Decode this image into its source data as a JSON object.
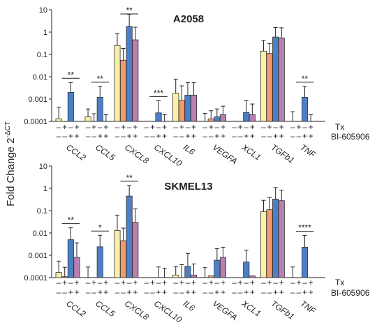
{
  "figure": {
    "ylabel_main": "Fold Change 2",
    "ylabel_sup": "-ΔCT",
    "row_labels": [
      "Tx",
      "BI-605906"
    ]
  },
  "colors": {
    "untreated": "#f7f0a6",
    "tx": "#f29a70",
    "bi": "#4d7fc4",
    "combo": "#b97fb1",
    "axis": "#222222"
  },
  "chart_data": [
    {
      "type": "bar",
      "title": "A2058",
      "scale": "log",
      "ylim": [
        0.0001,
        10
      ],
      "yticks": [
        "0.0001",
        "0.001",
        "0.01",
        "0.1",
        "1",
        "10"
      ],
      "categories": [
        "CCL2",
        "CCL5",
        "CXCL8",
        "CXCL10",
        "IL6",
        "VEGFA",
        "XCL1",
        "TGFb1",
        "TNF"
      ],
      "series": [
        {
          "values": [
            0.00013,
            0.00016,
            0.25,
            0.0001,
            0.0018,
            0.0001,
            0.0001,
            0.14,
            0.0001
          ]
        },
        {
          "values": [
            0.0001,
            0.0001,
            0.055,
            0.0001,
            0.0009,
            0.00013,
            0.0001,
            0.11,
            0.0001
          ]
        },
        {
          "values": [
            0.002,
            0.0012,
            1.8,
            0.00024,
            0.0015,
            0.00016,
            0.00025,
            0.6,
            0.0012
          ]
        },
        {
          "values": [
            0.0001,
            0.0001,
            0.45,
            0.0001,
            0.0015,
            0.0002,
            0.0002,
            0.55,
            0.0001
          ]
        }
      ],
      "errors": [
        [
          0.0003,
          0.0002,
          0.6,
          null,
          0.006,
          0.00013,
          null,
          0.28,
          0.00017
        ],
        [
          null,
          0.00012,
          0.13,
          null,
          0.003,
          0.00017,
          null,
          0.2,
          null
        ],
        [
          0.0035,
          0.0025,
          4.5,
          0.0006,
          0.004,
          0.0002,
          0.0006,
          1,
          0.0025
        ],
        [
          null,
          0.0001,
          1.2,
          0.0001,
          0.004,
          0.00028,
          0.0004,
          1,
          0.0001
        ]
      ],
      "significance": [
        {
          "category": "CCL2",
          "label": "**"
        },
        {
          "category": "CCL5",
          "label": "**"
        },
        {
          "category": "CXCL8",
          "label": "**"
        },
        {
          "category": "CXCL10",
          "label": "***"
        },
        {
          "category": "TNF",
          "label": "**"
        }
      ],
      "tx_signs": [
        "–",
        "+",
        "–",
        "+"
      ],
      "bi_signs": [
        "–",
        "–",
        "+",
        "+"
      ]
    },
    {
      "type": "bar",
      "title": "SKMEL13",
      "scale": "log",
      "ylim": [
        0.0001,
        10
      ],
      "yticks": [
        "0.0001",
        "0.001",
        "0.01",
        "0.1",
        "1",
        "10"
      ],
      "categories": [
        "CCL2",
        "CCL5",
        "CXCL8",
        "CXCL10",
        "IL6",
        "VEGFA",
        "XCL1",
        "TGFb1",
        "TNF"
      ],
      "series": [
        {
          "values": [
            0.00017,
            0.0001,
            0.013,
            0.0001,
            0.00013,
            0.0001,
            0.0001,
            0.09,
            0.0001
          ]
        },
        {
          "values": [
            0.00011,
            0.0001,
            0.0045,
            0.0001,
            0.0001,
            0.00012,
            0.0001,
            0.11,
            0.0001
          ]
        },
        {
          "values": [
            0.005,
            0.0024,
            0.45,
            0.0001,
            0.00032,
            0.0006,
            0.0005,
            0.33,
            0.0023
          ]
        },
        {
          "values": [
            0.0008,
            0.0001,
            0.03,
            0.0001,
            0.00013,
            0.0008,
            0.00012,
            0.28,
            0.0001
          ]
        }
      ],
      "errors": [
        [
          0.00038,
          0.0002,
          0.05,
          null,
          0.00018,
          0.00018,
          null,
          0.2,
          0.0002
        ],
        [
          0.00018,
          null,
          0.012,
          null,
          0.00028,
          null,
          null,
          0.28,
          null
        ],
        [
          0.012,
          0.0055,
          0.9,
          0.0002,
          0.0009,
          0.0014,
          0.0012,
          0.75,
          0.0055
        ],
        [
          0.0028,
          null,
          0.09,
          0.00016,
          0.00028,
          0.0015,
          null,
          0.55,
          null
        ]
      ],
      "significance": [
        {
          "category": "CCL2",
          "label": "**"
        },
        {
          "category": "CCL5",
          "label": "*"
        },
        {
          "category": "CXCL8",
          "label": "**"
        },
        {
          "category": "TNF",
          "label": "****"
        }
      ],
      "tx_signs": [
        "–",
        "+",
        "–",
        "+"
      ],
      "bi_signs": [
        "–",
        "–",
        "+",
        "+"
      ]
    }
  ]
}
